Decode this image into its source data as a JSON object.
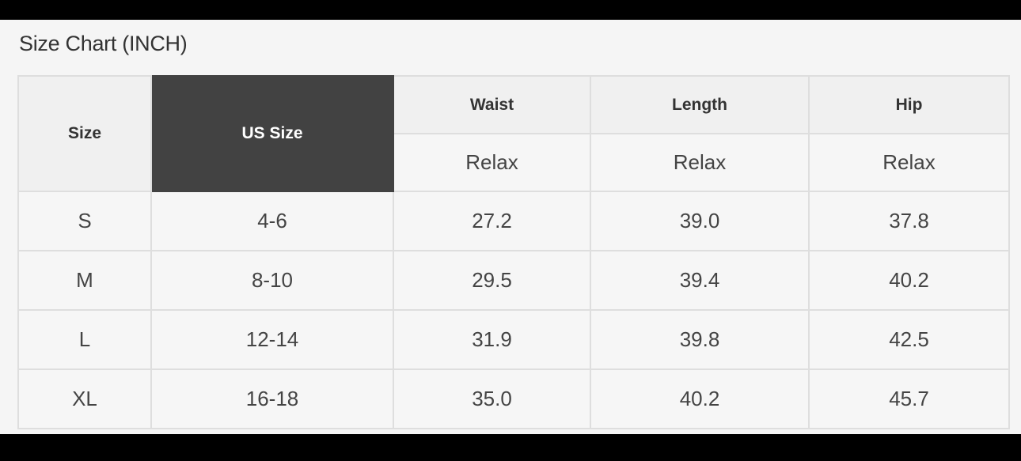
{
  "title": "Size Chart (INCH)",
  "table": {
    "headers": {
      "size": "Size",
      "us_size": "US Size",
      "waist": "Waist",
      "length": "Length",
      "hip": "Hip"
    },
    "subheaders": [
      "Relax",
      "Relax",
      "Relax"
    ],
    "rows": [
      [
        "S",
        "4-6",
        "27.2",
        "39.0",
        "37.8"
      ],
      [
        "M",
        "8-10",
        "29.5",
        "39.4",
        "40.2"
      ],
      [
        "L",
        "12-14",
        "31.9",
        "39.8",
        "42.5"
      ],
      [
        "XL",
        "16-18",
        "35.0",
        "40.2",
        "45.7"
      ]
    ]
  },
  "colors": {
    "header_dark": "#424242",
    "background": "#f5f5f5",
    "border": "#dedede"
  }
}
